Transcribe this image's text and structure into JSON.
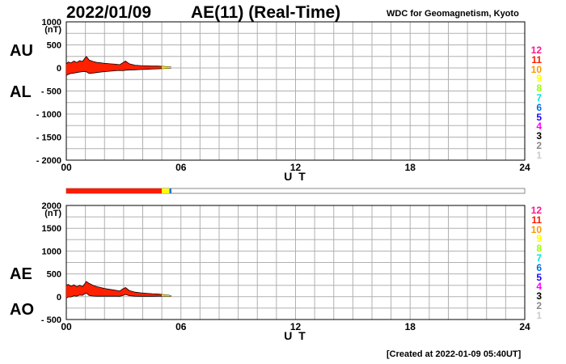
{
  "header": {
    "date": "2022/01/09",
    "title": "AE(11) (Real-Time)",
    "source": "WDC for Geomagnetism, Kyoto",
    "created": "[Created at 2022-01-09 05:40UT]"
  },
  "colors": {
    "series_fill": "#ff2000",
    "grid": "#b0b0b0",
    "legend": [
      "#ff1493",
      "#ff1a00",
      "#ff9900",
      "#ffff00",
      "#9aff00",
      "#00e0e0",
      "#0070e0",
      "#2000ff",
      "#ff00ff",
      "#000000",
      "#888888",
      "#cccccc"
    ]
  },
  "legend": [
    "12",
    "11",
    "10",
    "9",
    "8",
    "7",
    "6",
    "5",
    "4",
    "3",
    "2",
    "1"
  ],
  "chart_data": [
    {
      "type": "area",
      "title": "",
      "labels": {
        "upper": "AU",
        "lower": "AL"
      },
      "ylabel": "(nT)",
      "xlabel": "U T",
      "xlim": [
        0,
        24
      ],
      "ylim": [
        -2000,
        1000
      ],
      "yticks": [
        "1000",
        "500",
        "0",
        "- 500",
        "- 1000",
        "- 1500",
        "- 2000"
      ],
      "xticks": [
        "00",
        "06",
        "12",
        "18",
        "24"
      ],
      "x_hours": [
        0,
        0.1,
        0.25,
        0.4,
        0.55,
        0.7,
        0.85,
        0.95,
        1.05,
        1.2,
        1.4,
        1.6,
        1.8,
        2.0,
        2.3,
        2.6,
        2.8,
        2.95,
        3.1,
        3.3,
        3.6,
        3.9,
        4.2,
        4.5,
        4.8,
        5.0,
        5.2,
        5.4,
        5.5
      ],
      "series": [
        {
          "name": "AU",
          "values": [
            90,
            130,
            110,
            150,
            120,
            160,
            140,
            200,
            250,
            170,
            140,
            120,
            110,
            100,
            90,
            80,
            70,
            110,
            150,
            90,
            60,
            50,
            45,
            40,
            40,
            35,
            30,
            25,
            20
          ]
        },
        {
          "name": "AL",
          "values": [
            -160,
            -140,
            -120,
            -110,
            -100,
            -90,
            -80,
            -75,
            -85,
            -120,
            -110,
            -100,
            -90,
            -80,
            -70,
            -60,
            -55,
            -60,
            -50,
            -45,
            -40,
            -35,
            -30,
            -25,
            -20,
            -15,
            -10,
            -5,
            0
          ]
        }
      ]
    },
    {
      "type": "area",
      "title": "",
      "labels": {
        "upper": "AE",
        "lower": "AO"
      },
      "ylabel": "(nT)",
      "xlabel": "U T",
      "xlim": [
        0,
        24
      ],
      "ylim": [
        -500,
        2000
      ],
      "yticks": [
        "2000",
        "1500",
        "1000",
        "500",
        "0",
        "- 500"
      ],
      "xticks": [
        "00",
        "06",
        "12",
        "18",
        "24"
      ],
      "x_hours": [
        0,
        0.1,
        0.25,
        0.4,
        0.55,
        0.7,
        0.85,
        0.95,
        1.05,
        1.2,
        1.4,
        1.6,
        1.8,
        2.0,
        2.3,
        2.6,
        2.8,
        2.95,
        3.1,
        3.3,
        3.6,
        3.9,
        4.2,
        4.5,
        4.8,
        5.0,
        5.2,
        5.4,
        5.5
      ],
      "series": [
        {
          "name": "AE",
          "values": [
            250,
            270,
            230,
            260,
            220,
            250,
            220,
            275,
            335,
            290,
            250,
            220,
            200,
            180,
            160,
            140,
            125,
            170,
            200,
            135,
            100,
            85,
            75,
            65,
            60,
            50,
            40,
            30,
            20
          ]
        },
        {
          "name": "AO",
          "values": [
            -35,
            -5,
            -5,
            20,
            10,
            35,
            30,
            60,
            80,
            25,
            15,
            10,
            10,
            10,
            10,
            10,
            8,
            25,
            50,
            22,
            10,
            8,
            8,
            8,
            10,
            10,
            10,
            10,
            10
          ]
        }
      ]
    }
  ],
  "availability_bar": [
    {
      "from": 0,
      "to": 5.0,
      "station_count": "11"
    },
    {
      "from": 5.0,
      "to": 5.4,
      "station_count": "9"
    },
    {
      "from": 5.4,
      "to": 5.5,
      "station_count": "6"
    }
  ]
}
